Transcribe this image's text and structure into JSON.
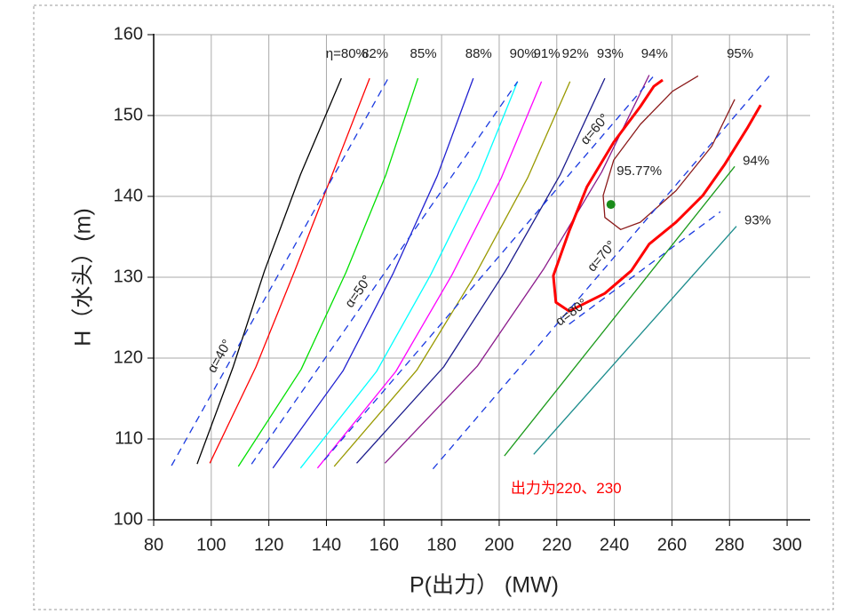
{
  "chart_data": {
    "type": "line",
    "xlabel": "P(出力） (MW)",
    "ylabel": "H（水头）(m)",
    "xlim": [
      80,
      308
    ],
    "ylim": [
      100,
      160
    ],
    "xticks": [
      80,
      100,
      120,
      140,
      160,
      180,
      200,
      220,
      240,
      260,
      280,
      300
    ],
    "yticks": [
      100,
      110,
      120,
      130,
      140,
      150,
      160
    ],
    "grid": true,
    "series": [
      {
        "name": "η=80%",
        "color": "#000000",
        "x": [
          95.1,
          107.5,
          118.5,
          131,
          145.2
        ],
        "values": [
          106.9,
          118.8,
          130.8,
          142.7,
          154.6
        ]
      },
      {
        "name": "82%",
        "color": "#ff0000",
        "x": [
          99.5,
          115.5,
          129,
          142,
          155
        ],
        "values": [
          107,
          118.9,
          130.8,
          142.7,
          154.6
        ]
      },
      {
        "name": "85%",
        "color": "#00e000",
        "x": [
          109.4,
          131.2,
          146.8,
          160.6,
          171.8
        ],
        "values": [
          106.6,
          118.6,
          130.6,
          142.6,
          154.6
        ]
      },
      {
        "name": "88%",
        "color": "#2020d0",
        "x": [
          121.4,
          145.8,
          163.2,
          178.5,
          191
        ],
        "values": [
          106.4,
          118.45,
          130.5,
          142.55,
          154.6
        ]
      },
      {
        "name": "90%",
        "color": "#00ffff",
        "x": [
          131,
          157.4,
          176.2,
          192.8,
          206.4
        ],
        "values": [
          106.4,
          118.35,
          130.3,
          142.25,
          154.2
        ]
      },
      {
        "name": "91%",
        "color": "#ff00ff",
        "x": [
          136.9,
          164.1,
          183.6,
          200.7,
          214.7
        ],
        "values": [
          106.4,
          118.35,
          130.3,
          142.25,
          154.2
        ]
      },
      {
        "name": "92%",
        "color": "#999900",
        "x": [
          142.7,
          171.4,
          191.8,
          209.9,
          224.6
        ],
        "values": [
          106.6,
          118.5,
          130.4,
          142.3,
          154.2
        ]
      },
      {
        "name": "93%",
        "color": "#1a1a8c",
        "x": [
          150.5,
          180.7,
          202.2,
          221.2,
          236.7
        ],
        "values": [
          107,
          118.9,
          130.8,
          142.7,
          154.6
        ]
      },
      {
        "name": "94%",
        "color": "#8b1a8b",
        "x": [
          160.3,
          192.4,
          215.4,
          235.6,
          252.1
        ],
        "values": [
          107,
          119,
          131,
          143,
          155
        ]
      },
      {
        "name": "95%",
        "color": "#8b1a1a",
        "x": [
          269.1,
          260.2,
          249.0,
          239.8,
          236.1,
          236.7,
          242.2,
          249.0,
          261.4,
          273.8,
          281.8
        ],
        "values": [
          154.9,
          153.0,
          148.9,
          144.5,
          140.1,
          137.4,
          135.9,
          136.8,
          140.7,
          146.2,
          152.0
        ]
      },
      {
        "color": "#ff0000",
        "line_width": 3,
        "x": [
          256.8,
          253.7,
          249.0,
          239.8,
          230.5,
          224.3,
          218.8,
          219.7,
          224.3,
          236.7,
          245.9,
          252.1,
          261.4,
          270.7,
          278.4,
          286.1,
          290.8
        ],
        "values": [
          154.4,
          153.6,
          151.1,
          146.7,
          141.2,
          135.7,
          130.2,
          126.9,
          125.8,
          128.0,
          130.8,
          134.1,
          136.8,
          140.1,
          144.0,
          148.4,
          151.3
        ]
      },
      {
        "name": "94%",
        "color": "#1a9a1a",
        "x": [
          201.8,
          281.8
        ],
        "values": [
          107.9,
          143.7
        ]
      },
      {
        "name": "93%",
        "color": "#1a8c8c",
        "x": [
          212.0,
          282.4
        ],
        "values": [
          108.1,
          136.3
        ]
      },
      {
        "name": "α=40°",
        "color": "#1a3ae0",
        "dash": true,
        "x": [
          86.2,
          161.9
        ],
        "values": [
          106.7,
          154.9
        ]
      },
      {
        "name": "α=50°",
        "color": "#1a3ae0",
        "dash": true,
        "x": [
          114.0,
          206.4
        ],
        "values": [
          106.9,
          154.2
        ]
      },
      {
        "name": "α=60°",
        "color": "#1a3ae0",
        "dash": true,
        "x": [
          139.3,
          253.7
        ],
        "values": [
          107.4,
          154.9
        ]
      },
      {
        "name": "α=70°",
        "color": "#1a3ae0",
        "dash": true,
        "x": [
          177.0,
          293.8
        ],
        "values": [
          106.3,
          154.9
        ]
      },
      {
        "name": "α=80°",
        "color": "#1a3ae0",
        "dash": true,
        "x": [
          224.3,
          276.8
        ],
        "values": [
          124.2,
          138.1
        ]
      }
    ],
    "point": {
      "x": 238.8,
      "y": 139,
      "label": "95.77%",
      "color": "#1a8c1a"
    },
    "annotation": "出力为220、230",
    "annotation_color": "#ff0000"
  }
}
